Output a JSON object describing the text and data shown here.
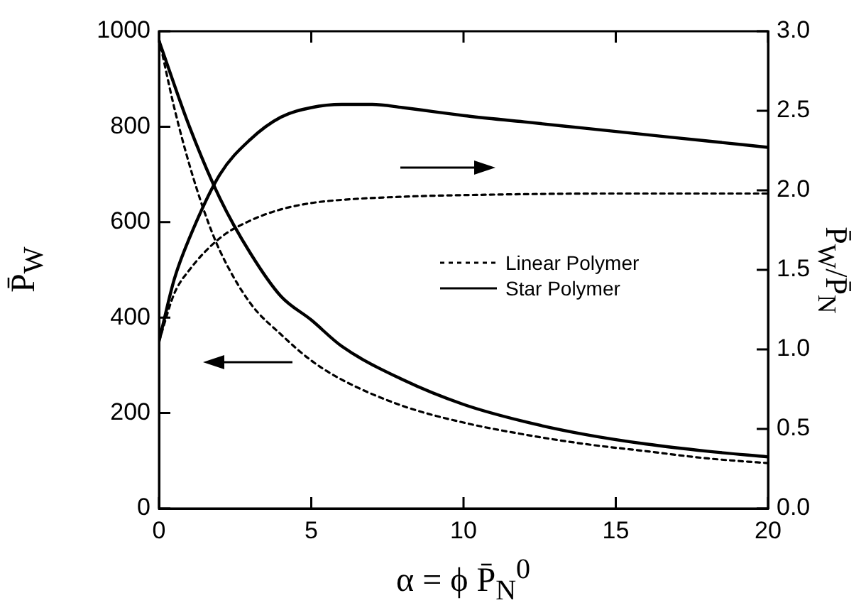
{
  "chart_data": {
    "type": "line",
    "xlabel": "α = ϕ P̄$_{N}$$^{0}$",
    "ylabel": "P̄$_{W}$",
    "y2label": "P̄$_{W}$/P̄$_{N}$",
    "xlim": [
      0,
      20
    ],
    "xticks": [
      0,
      5,
      10,
      15,
      20
    ],
    "ylim": [
      0,
      1000
    ],
    "yticks": [
      0,
      200,
      400,
      600,
      800,
      1000
    ],
    "y2lim": [
      0,
      3
    ],
    "y2ticks": [
      {
        "value": 0,
        "label": "0.0"
      },
      {
        "value": 0.5,
        "label": "0.5"
      },
      {
        "value": 1,
        "label": "1.0"
      },
      {
        "value": 1.5,
        "label": "1.5"
      },
      {
        "value": 2,
        "label": "2.0"
      },
      {
        "value": 2.5,
        "label": "2.5"
      },
      {
        "value": 3,
        "label": "3.0"
      }
    ],
    "grid": false,
    "legend": "right",
    "marker": "none",
    "series": [
      {
        "name": "Linear Polymer",
        "color": "#000000",
        "line_style": "dotted",
        "x": [
          0,
          0.5,
          1,
          1.5,
          2,
          3,
          4,
          5,
          6,
          8,
          10,
          12,
          14,
          16,
          18,
          20
        ],
        "values": [
          985,
          840,
          720,
          620,
          540,
          430,
          365,
          310,
          270,
          215,
          180,
          155,
          135,
          120,
          105,
          95
        ]
      },
      {
        "name": "Star Polymer",
        "color": "#000000",
        "line_style": "solid",
        "x": [
          0,
          1,
          2,
          3,
          4,
          5,
          6,
          8,
          10,
          12,
          14,
          16,
          18,
          20
        ],
        "values": [
          980,
          800,
          650,
          535,
          445,
          395,
          340,
          270,
          218,
          182,
          155,
          135,
          120,
          108
        ]
      },
      {
        "color": "#000000",
        "line_style": "dotted",
        "axis": "y2",
        "x": [
          0,
          0.5,
          1,
          2,
          3,
          4,
          5,
          6,
          8,
          10,
          15,
          20
        ],
        "values": [
          1.05,
          1.35,
          1.5,
          1.7,
          1.81,
          1.88,
          1.92,
          1.94,
          1.96,
          1.97,
          1.98,
          1.98
        ]
      },
      {
        "color": "#000000",
        "line_style": "solid",
        "axis": "y2",
        "x": [
          0,
          0.5,
          1,
          2,
          3,
          4,
          5,
          6,
          7,
          8,
          10,
          12,
          14,
          16,
          18,
          20
        ],
        "values": [
          1.05,
          1.44,
          1.7,
          2.1,
          2.32,
          2.46,
          2.52,
          2.54,
          2.54,
          2.52,
          2.47,
          2.43,
          2.39,
          2.35,
          2.31,
          2.27
        ]
      }
    ]
  }
}
